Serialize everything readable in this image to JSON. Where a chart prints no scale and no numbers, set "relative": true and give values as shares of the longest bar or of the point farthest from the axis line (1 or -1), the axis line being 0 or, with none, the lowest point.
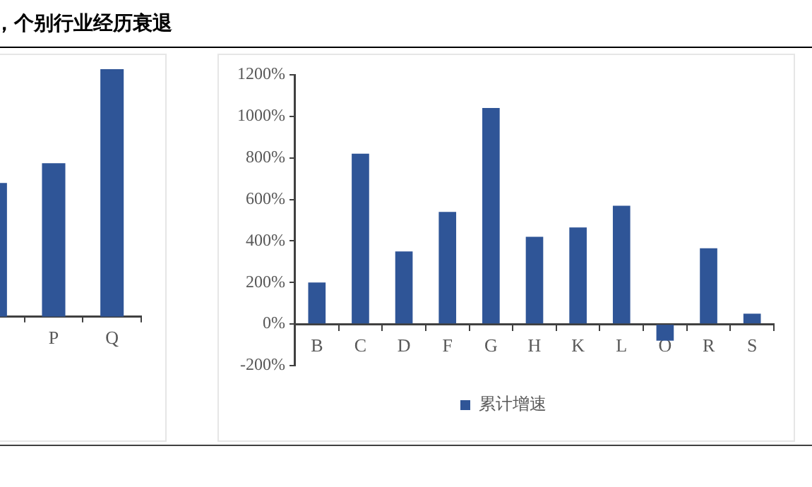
{
  "chart_data": [
    {
      "type": "bar",
      "title": "，个别行业经历衰退",
      "relative": true,
      "categories": [
        null,
        "P",
        "Q"
      ],
      "values": [
        0.54,
        0.62,
        1
      ],
      "color": "#2f5597",
      "grid": false,
      "legend": false
    },
    {
      "type": "bar",
      "categories": [
        "B",
        "C",
        "D",
        "F",
        "G",
        "H",
        "K",
        "L",
        "O",
        "R",
        "S"
      ],
      "series": [
        {
          "name": "累计增速",
          "color": "#2f5597",
          "values": [
            200,
            820,
            350,
            540,
            1040,
            420,
            465,
            570,
            -80,
            365,
            50
          ]
        }
      ],
      "ylim": [
        -200,
        1200
      ],
      "yticks": [
        {
          "value": -200,
          "label": "-200%"
        },
        {
          "value": 0,
          "label": "0%"
        },
        {
          "value": 200,
          "label": "200%"
        },
        {
          "value": 400,
          "label": "400%"
        },
        {
          "value": 600,
          "label": "600%"
        },
        {
          "value": 800,
          "label": "800%"
        },
        {
          "value": 1000,
          "label": "1000%"
        },
        {
          "value": 1200,
          "label": "1200%"
        }
      ],
      "grid": false,
      "legend": "bottom"
    }
  ]
}
